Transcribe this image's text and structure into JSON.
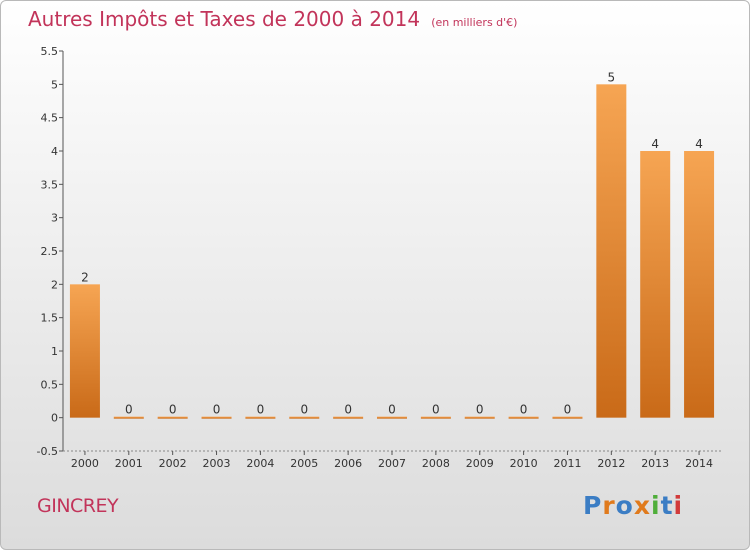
{
  "header": {
    "title": "Autres Impôts et Taxes de 2000 à 2014",
    "subtitle": "(en milliers d'€)"
  },
  "footer": {
    "commune": "GINCREY",
    "logo_text": "Proxiti"
  },
  "colors": {
    "title": "#c2345a",
    "bar_top": "#f6a553",
    "bar_bottom": "#c96a18",
    "axis": "#555555",
    "logo_letters": [
      "#3b7dc4",
      "#e07a1c",
      "#3b7dc4",
      "#e07a1c",
      "#4fae3a",
      "#3b7dc4",
      "#d23b3b"
    ]
  },
  "chart_data": {
    "type": "bar",
    "categories": [
      "2000",
      "2001",
      "2002",
      "2003",
      "2004",
      "2005",
      "2006",
      "2007",
      "2008",
      "2009",
      "2010",
      "2011",
      "2012",
      "2013",
      "2014"
    ],
    "values": [
      2,
      0,
      0,
      0,
      0,
      0,
      0,
      0,
      0,
      0,
      0,
      0,
      5,
      4,
      4
    ],
    "data_labels": [
      "2",
      "0",
      "0",
      "0",
      "0",
      "0",
      "0",
      "0",
      "0",
      "0",
      "0",
      "0",
      "5",
      "4",
      "4"
    ],
    "y_ticks": [
      "-0.5",
      "0",
      "0.5",
      "1",
      "1.5",
      "2",
      "2.5",
      "3",
      "3.5",
      "4",
      "4.5",
      "5",
      "5.5"
    ],
    "ylim": [
      -0.5,
      5.5
    ],
    "xlabel": "",
    "ylabel": "",
    "grid": false,
    "legend": "none"
  }
}
